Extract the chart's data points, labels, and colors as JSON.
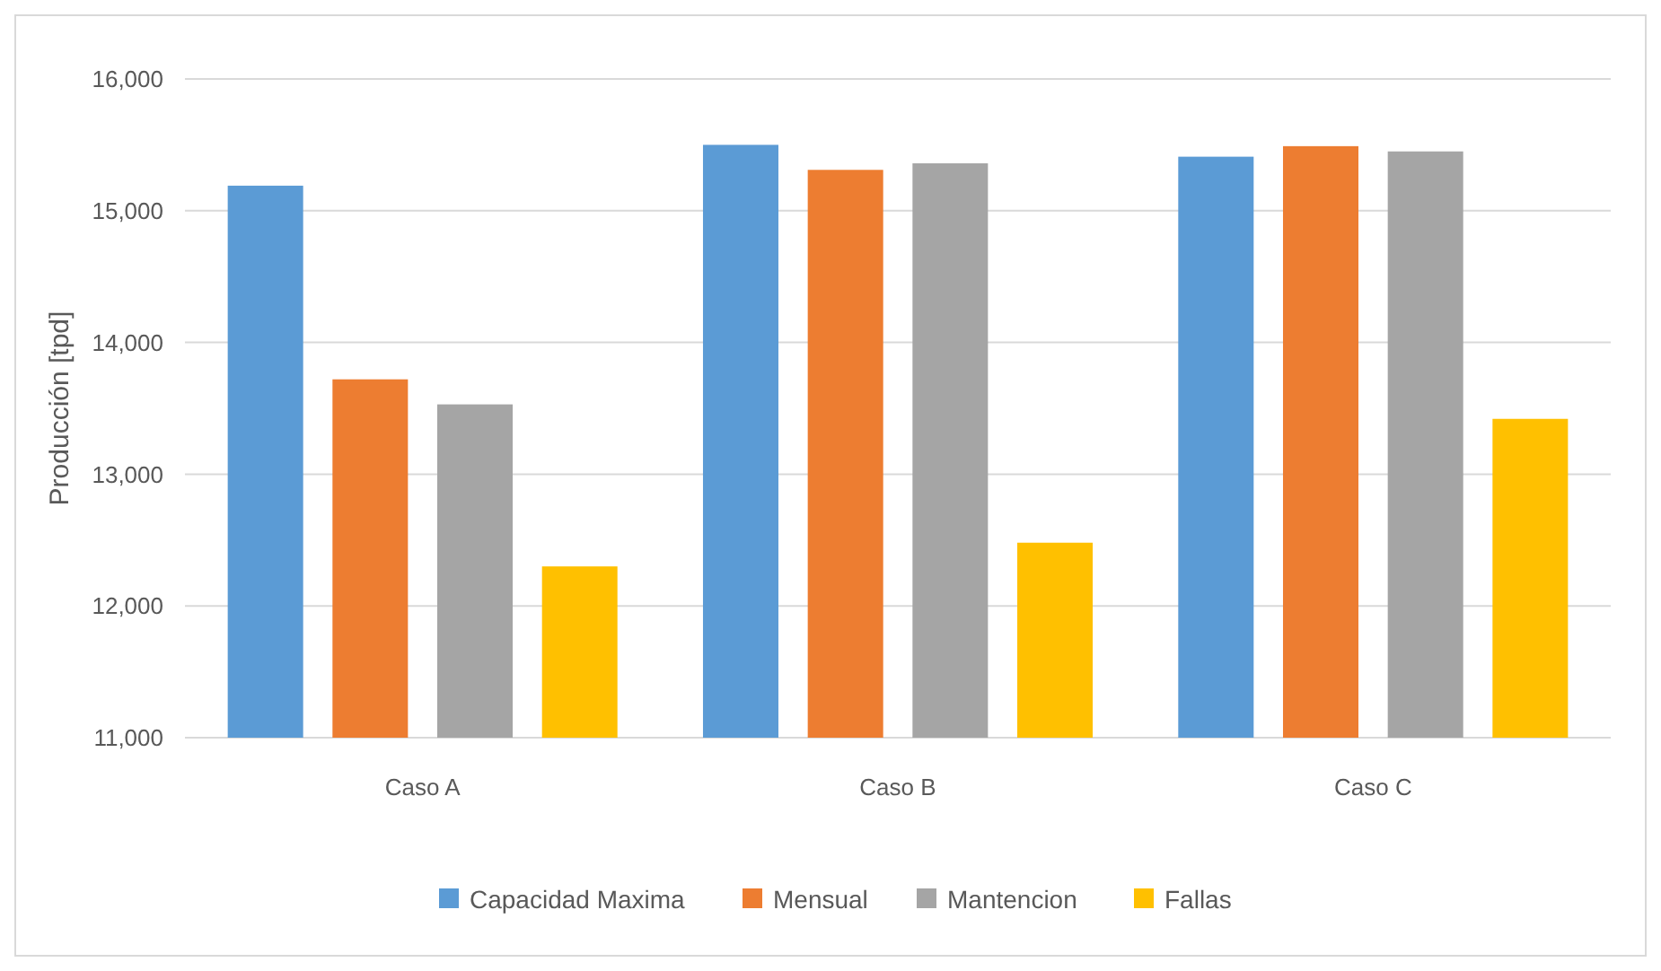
{
  "chart_data": {
    "type": "bar",
    "ylabel": "Producción [tpd]",
    "categories": [
      "Caso A",
      "Caso B",
      "Caso C"
    ],
    "series": [
      {
        "name": "Capacidad Maxima",
        "color": "#5b9bd5",
        "values": [
          15190,
          15500,
          15410
        ]
      },
      {
        "name": "Mensual",
        "color": "#ed7d31",
        "values": [
          13720,
          15310,
          15490
        ]
      },
      {
        "name": "Mantencion",
        "color": "#a5a5a5",
        "values": [
          13530,
          15360,
          15450
        ]
      },
      {
        "name": "Fallas",
        "color": "#ffc000",
        "values": [
          12300,
          12480,
          13420
        ]
      }
    ],
    "ylim": [
      11000,
      16000
    ],
    "yticks": [
      {
        "value": 11000,
        "label": "11,000"
      },
      {
        "value": 12000,
        "label": "12,000"
      },
      {
        "value": 13000,
        "label": "13,000"
      },
      {
        "value": 14000,
        "label": "14,000"
      },
      {
        "value": 15000,
        "label": "15,000"
      },
      {
        "value": 16000,
        "label": "16,000"
      }
    ],
    "grid": "y",
    "legend": "bottom"
  }
}
